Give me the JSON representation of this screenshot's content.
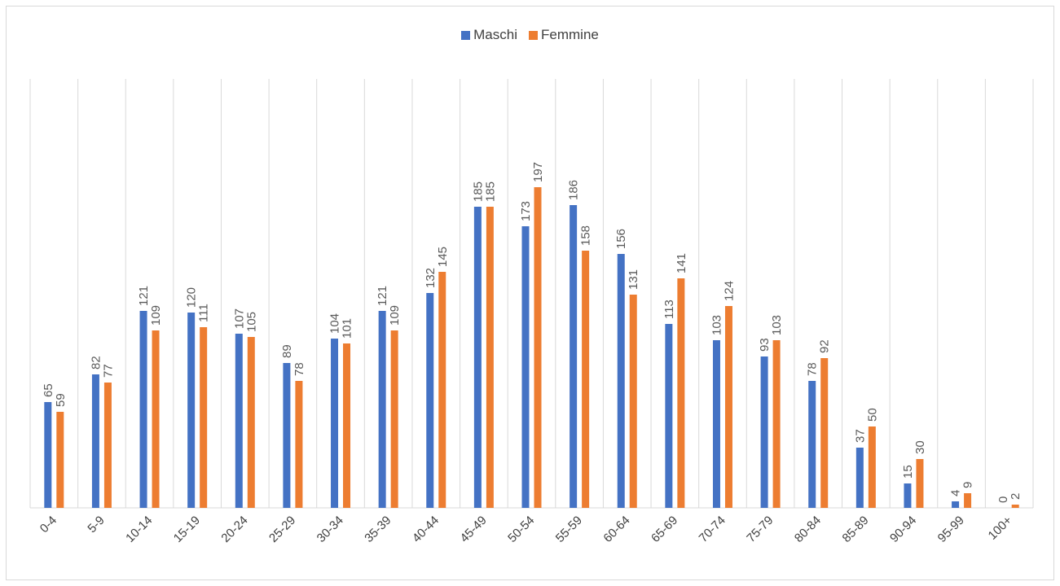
{
  "chart_data": {
    "type": "bar",
    "title": "",
    "xlabel": "",
    "ylabel": "",
    "ylim": [
      0,
      220
    ],
    "grid": "vertical",
    "legend_position": "top",
    "categories": [
      "0-4",
      "5-9",
      "10-14",
      "15-19",
      "20-24",
      "25-29",
      "30-34",
      "35-39",
      "40-44",
      "45-49",
      "50-54",
      "55-59",
      "60-64",
      "65-69",
      "70-74",
      "75-79",
      "80-84",
      "85-89",
      "90-94",
      "95-99",
      "100+"
    ],
    "series": [
      {
        "name": "Maschi",
        "color": "#4472c4",
        "values": [
          65,
          82,
          121,
          120,
          107,
          89,
          104,
          121,
          132,
          185,
          173,
          186,
          156,
          113,
          103,
          93,
          78,
          37,
          15,
          4,
          0
        ]
      },
      {
        "name": "Femmine",
        "color": "#ed7d31",
        "values": [
          59,
          77,
          109,
          111,
          105,
          78,
          101,
          109,
          145,
          185,
          197,
          158,
          131,
          141,
          124,
          103,
          92,
          50,
          30,
          9,
          2
        ]
      }
    ]
  }
}
